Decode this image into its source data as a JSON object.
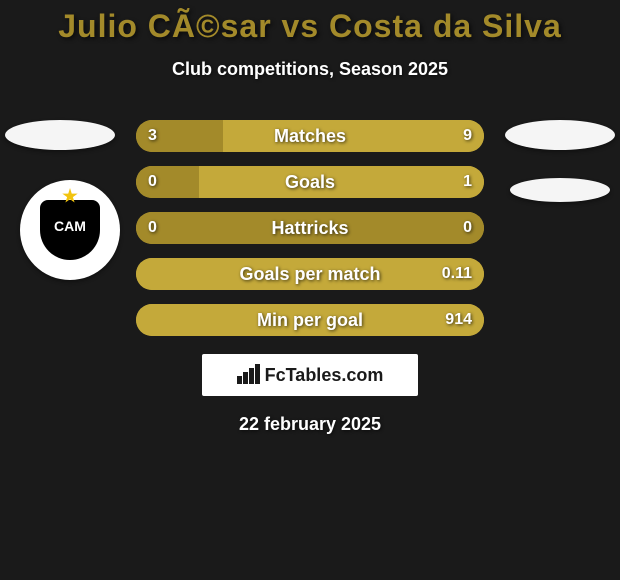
{
  "title": "Julio CÃ©sar vs Costa da Silva",
  "title_color": "#a38a2a",
  "subtitle": "Club competitions, Season 2025",
  "footer_brand": "FcTables.com",
  "footer_date": "22 february 2025",
  "colors": {
    "background": "#1a1a1a",
    "left": "#a38a2a",
    "right": "#c4a93a",
    "neutral": "#c4a93a",
    "text": "#ffffff"
  },
  "bars": [
    {
      "label": "Matches",
      "left_val": "3",
      "right_val": "9",
      "left_pct": 25,
      "right_pct": 75
    },
    {
      "label": "Goals",
      "left_val": "0",
      "right_val": "1",
      "left_pct": 18,
      "right_pct": 82
    },
    {
      "label": "Hattricks",
      "left_val": "0",
      "right_val": "0",
      "left_pct": 100,
      "right_pct": 0
    },
    {
      "label": "Goals per match",
      "left_val": "",
      "right_val": "0.11",
      "left_pct": 0,
      "right_pct": 100
    },
    {
      "label": "Min per goal",
      "left_val": "",
      "right_val": "914",
      "left_pct": 0,
      "right_pct": 100
    }
  ],
  "bar_style": {
    "height": 32,
    "radius": 16,
    "gap": 14,
    "label_fontsize": 18,
    "value_fontsize": 16
  },
  "club_left_text": "CAM"
}
